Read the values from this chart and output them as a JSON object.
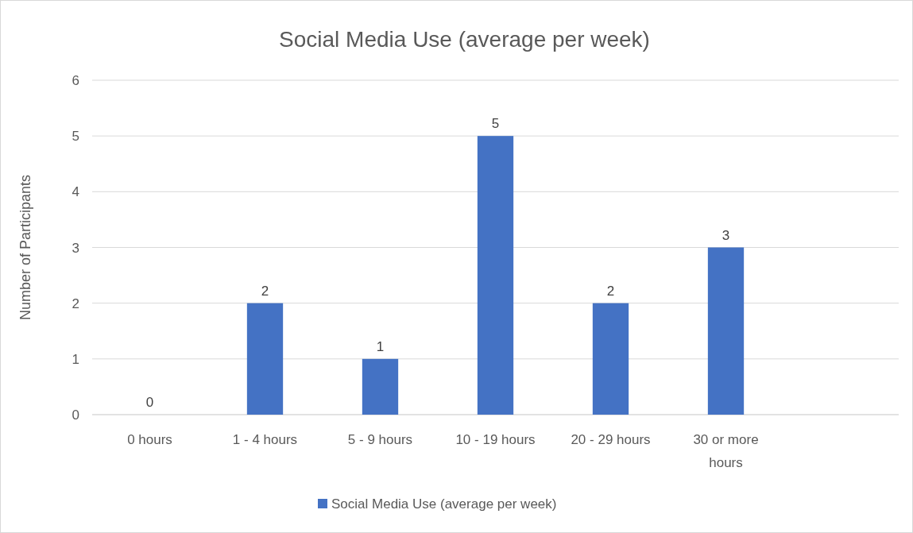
{
  "chart_data": {
    "type": "bar",
    "title": "Social Media Use (average per week)",
    "ylabel": "Number of Participants",
    "categories": [
      "0 hours",
      "1 - 4 hours",
      "5 - 9 hours",
      "10 - 19 hours",
      "20 - 29 hours",
      "30 or more hours",
      null
    ],
    "series": [
      {
        "name": "Social Media Use (average per week)",
        "color": "#4472c4",
        "values": [
          0,
          2,
          1,
          5,
          2,
          3,
          null
        ]
      }
    ],
    "ylim": [
      0,
      6
    ],
    "yticks": [
      0,
      1,
      2,
      3,
      4,
      5,
      6
    ],
    "grid": "y",
    "legend": "bottom",
    "data_labels": true
  }
}
